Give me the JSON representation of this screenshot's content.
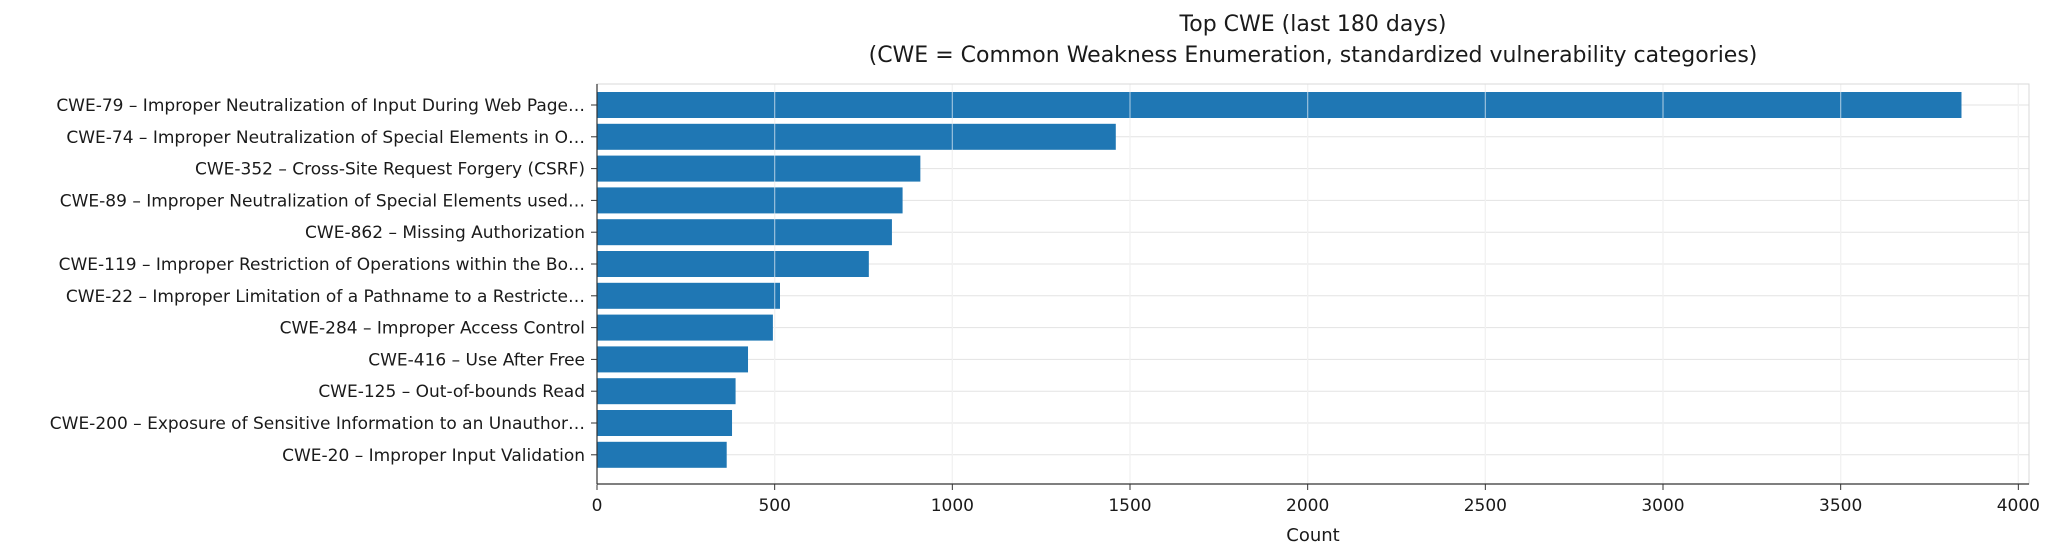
{
  "chart_data": {
    "type": "bar",
    "orientation": "horizontal",
    "title": "Top CWE (last 180 days)",
    "subtitle": "(CWE = Common Weakness Enumeration, standardized vulnerability categories)",
    "xlabel": "Count",
    "ylabel": "",
    "xlim": [
      0,
      4030
    ],
    "xticks": [
      0,
      500,
      1000,
      1500,
      2000,
      2500,
      3000,
      3500,
      4000
    ],
    "grid": true,
    "bar_color": "#1f77b4",
    "categories": [
      "CWE-79 – Improper Neutralization of Input During Web Page…",
      "CWE-74 – Improper Neutralization of Special Elements in O…",
      "CWE-352 – Cross-Site Request Forgery (CSRF)",
      "CWE-89 – Improper Neutralization of Special Elements used…",
      "CWE-862 – Missing Authorization",
      "CWE-119 – Improper Restriction of Operations within the Bo…",
      "CWE-22 – Improper Limitation of a Pathname to a Restricte…",
      "CWE-284 – Improper Access Control",
      "CWE-416 – Use After Free",
      "CWE-125 – Out-of-bounds Read",
      "CWE-200 – Exposure of Sensitive Information to an Unauthor…",
      "CWE-20 – Improper Input Validation"
    ],
    "values": [
      3840,
      1460,
      910,
      860,
      830,
      765,
      515,
      495,
      425,
      390,
      380,
      365
    ]
  }
}
